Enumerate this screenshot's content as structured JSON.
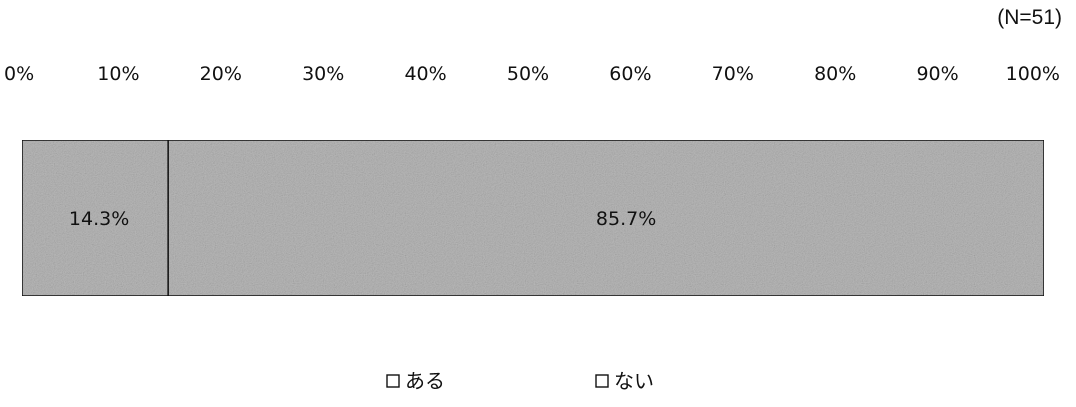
{
  "sample_size": "(N=51)",
  "colors": {
    "bar_fill": "#b9b9b9",
    "bar_border": "#111111",
    "text": "#111111"
  },
  "chart_data": {
    "type": "bar",
    "orientation": "horizontal-stacked",
    "x_ticks": [
      "0%",
      "10%",
      "20%",
      "30%",
      "40%",
      "50%",
      "60%",
      "70%",
      "80%",
      "90%",
      "100%"
    ],
    "xlim": [
      0,
      100
    ],
    "grid": false,
    "legend_position": "bottom",
    "series": [
      {
        "name": "ある",
        "value": 14.3,
        "label": "14.3%"
      },
      {
        "name": "ない",
        "value": 85.7,
        "label": "85.7%"
      }
    ]
  }
}
